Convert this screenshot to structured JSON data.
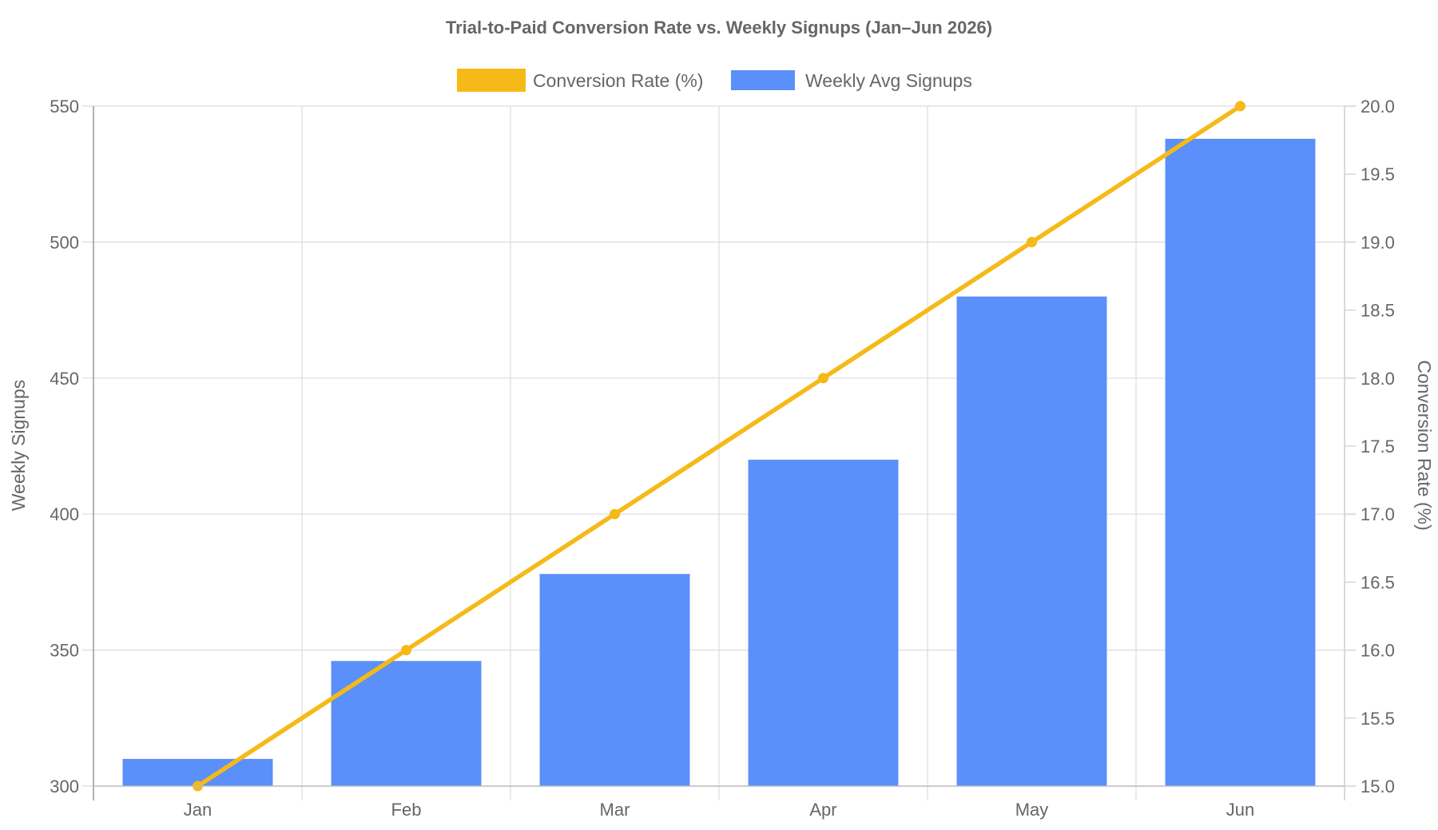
{
  "chart_data": {
    "type": "bar",
    "title": "Trial-to-Paid Conversion Rate vs. Weekly Signups (Jan–Jun 2026)",
    "categories": [
      "Jan",
      "Feb",
      "Mar",
      "Apr",
      "May",
      "Jun"
    ],
    "series": [
      {
        "name": "Weekly Avg Signups",
        "type": "bar",
        "axis": "left",
        "color": "#5B8FF9",
        "values": [
          310,
          346,
          378,
          420,
          480,
          538
        ]
      },
      {
        "name": "Conversion Rate (%)",
        "type": "line",
        "axis": "right",
        "color": "#F5BA18",
        "values": [
          15.0,
          16.0,
          17.0,
          18.0,
          19.0,
          20.0
        ]
      }
    ],
    "y_left": {
      "label": "Weekly Signups",
      "lim": [
        300,
        550
      ],
      "ticks": [
        "300",
        "350",
        "400",
        "450",
        "500",
        "550"
      ]
    },
    "y_right": {
      "label": "Conversion Rate (%)",
      "lim": [
        15.0,
        20.0
      ],
      "ticks": [
        "15.0",
        "15.5",
        "16.0",
        "16.5",
        "17.0",
        "17.5",
        "18.0",
        "18.5",
        "19.0",
        "19.5",
        "20.0"
      ]
    },
    "legend": {
      "position": "top-center",
      "entries": [
        "Conversion Rate (%)",
        "Weekly Avg Signups"
      ]
    },
    "grid": true
  }
}
